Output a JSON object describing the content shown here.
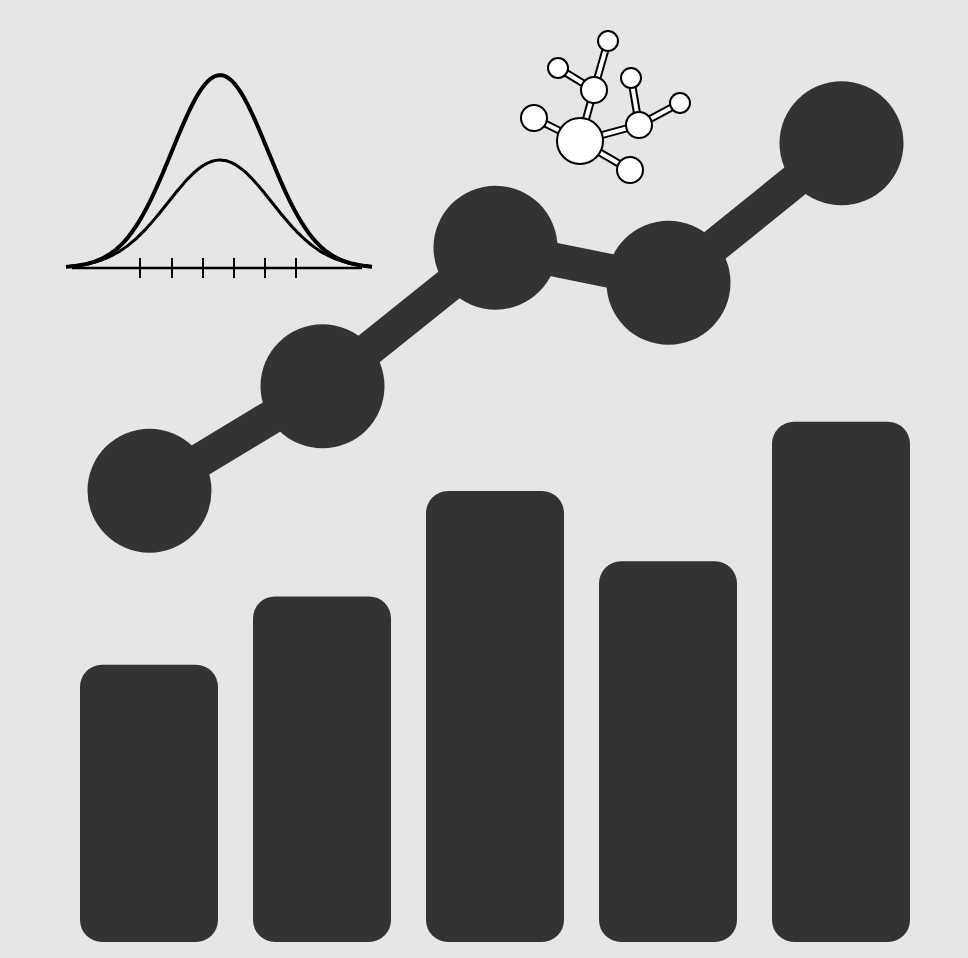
{
  "chart_data": {
    "type": "bar",
    "categories": [
      null,
      null,
      null,
      null,
      null
    ],
    "ylim": [
      0,
      100
    ],
    "tick_labels": false,
    "grid": false,
    "series": [
      {
        "type": "bar",
        "color": "#333333",
        "values": [
          30.8,
          38.4,
          50.1,
          42.3,
          57.8
        ]
      },
      {
        "type": "line",
        "marker": "circle",
        "color": "#333333",
        "values": [
          50.2,
          61.8,
          77.2,
          73.3,
          88.8
        ]
      }
    ]
  }
}
